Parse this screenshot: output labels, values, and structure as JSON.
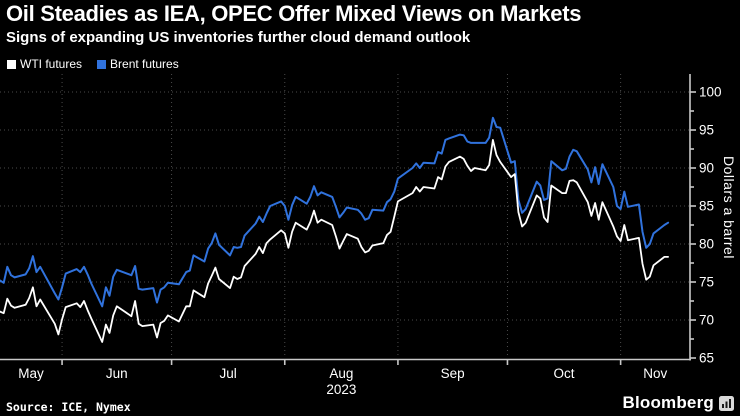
{
  "chart_data": {
    "type": "line",
    "title": "Oil Steadies as IEA, OPEC Offer Mixed Views on Markets",
    "subtitle": "Signs of expanding US inventories further cloud demand outlook",
    "ylabel": "Dollars a barrel",
    "ylim": [
      65,
      100
    ],
    "grid": true,
    "legend_position": "top-left",
    "background_color": "#000000",
    "grid_color": "#4a4a4a",
    "axis_color": "#c8c8c8",
    "text_color": "#ffffff",
    "x_unit": "trading days, offset 1 = 15 May 2023",
    "x_domain": [
      1,
      190
    ],
    "y_ticks_major": [
      65,
      70,
      75,
      80,
      85,
      90,
      95,
      100
    ],
    "y_ticks_minor": [
      67.5,
      72.5,
      77.5,
      82.5,
      87.5,
      92.5,
      97.5
    ],
    "gridline_values": [
      70,
      75,
      80,
      85,
      90,
      95,
      100
    ],
    "month_boundaries": [
      18,
      48,
      79,
      110,
      140,
      171
    ],
    "month_labels": [
      {
        "label": "May",
        "d": 9.5
      },
      {
        "label": "Jun",
        "d": 33
      },
      {
        "label": "Jul",
        "d": 63.5
      },
      {
        "label": "Aug",
        "d": 94.5
      },
      {
        "label": "Sep",
        "d": 125
      },
      {
        "label": "Oct",
        "d": 155.5
      },
      {
        "label": "Nov",
        "d": 180.5
      }
    ],
    "year_label": {
      "text": "2023",
      "d": 94.5
    },
    "x_offsets": [
      1,
      2,
      3,
      4,
      5,
      8,
      9,
      10,
      11,
      12,
      16,
      17,
      18,
      19,
      22,
      23,
      24,
      25,
      26,
      29,
      30,
      31,
      32,
      33,
      37,
      38,
      39,
      40,
      43,
      44,
      45,
      46,
      47,
      50,
      52,
      53,
      54,
      57,
      58,
      59,
      60,
      61,
      64,
      65,
      66,
      67,
      68,
      71,
      72,
      73,
      74,
      75,
      78,
      79,
      80,
      81,
      82,
      85,
      86,
      87,
      88,
      89,
      92,
      93,
      94,
      95,
      96,
      99,
      100,
      101,
      102,
      103,
      106,
      107,
      108,
      109,
      110,
      114,
      115,
      116,
      117,
      120,
      121,
      122,
      123,
      124,
      127,
      128,
      129,
      130,
      131,
      134,
      135,
      136,
      137,
      138,
      141,
      142,
      143,
      144,
      145,
      148,
      149,
      150,
      151,
      152,
      155,
      156,
      157,
      158,
      159,
      162,
      163,
      164,
      165,
      166,
      169,
      170,
      171,
      172,
      173,
      176,
      177,
      178,
      179,
      180,
      183,
      184
    ],
    "series": [
      {
        "name": "WTI futures",
        "color": "#ffffff",
        "width": 1.8,
        "values": [
          71.1,
          70.9,
          72.8,
          71.9,
          71.6,
          72.0,
          72.9,
          74.3,
          71.8,
          72.7,
          69.5,
          68.1,
          70.1,
          71.7,
          72.2,
          71.7,
          72.5,
          71.3,
          70.2,
          67.1,
          69.4,
          68.3,
          70.6,
          71.8,
          70.5,
          72.5,
          69.5,
          69.2,
          69.4,
          67.7,
          69.6,
          69.9,
          70.6,
          69.8,
          71.8,
          71.8,
          73.9,
          73.0,
          74.8,
          75.8,
          76.9,
          75.4,
          74.2,
          75.7,
          75.4,
          75.6,
          77.1,
          78.7,
          79.6,
          78.8,
          80.1,
          80.6,
          81.8,
          81.4,
          79.5,
          81.6,
          82.8,
          81.9,
          82.9,
          84.4,
          82.8,
          83.2,
          82.5,
          81.0,
          79.4,
          80.4,
          81.3,
          80.7,
          79.6,
          78.9,
          79.1,
          79.8,
          80.1,
          81.2,
          81.6,
          83.6,
          85.6,
          86.7,
          87.5,
          86.9,
          87.5,
          87.3,
          88.8,
          88.5,
          90.2,
          90.8,
          91.5,
          91.2,
          90.3,
          89.6,
          90.0,
          89.7,
          90.4,
          93.7,
          91.7,
          90.8,
          88.8,
          89.2,
          84.2,
          82.3,
          82.8,
          86.4,
          86.0,
          83.5,
          82.9,
          87.7,
          86.7,
          86.7,
          88.3,
          88.4,
          88.1,
          85.5,
          83.7,
          85.4,
          83.2,
          85.5,
          82.3,
          81.0,
          80.4,
          82.5,
          80.5,
          80.8,
          77.4,
          75.3,
          75.7,
          77.2,
          78.3,
          78.3
        ]
      },
      {
        "name": "Brent futures",
        "color": "#3072dd",
        "width": 2,
        "values": [
          75.2,
          74.9,
          77.0,
          75.9,
          75.6,
          76.0,
          76.8,
          78.4,
          76.3,
          77.0,
          73.5,
          72.7,
          74.3,
          76.1,
          76.7,
          76.3,
          77.0,
          76.0,
          74.8,
          71.8,
          74.3,
          73.2,
          75.7,
          76.6,
          75.9,
          77.1,
          74.1,
          74.0,
          74.2,
          72.3,
          74.0,
          74.3,
          74.9,
          74.7,
          76.3,
          76.5,
          78.5,
          77.7,
          79.4,
          80.1,
          81.4,
          79.9,
          78.5,
          79.6,
          79.5,
          79.6,
          81.1,
          82.7,
          83.6,
          82.9,
          84.0,
          85.0,
          85.6,
          85.0,
          83.2,
          85.1,
          86.2,
          85.3,
          86.2,
          87.6,
          86.4,
          86.8,
          86.2,
          84.9,
          83.5,
          84.1,
          84.8,
          84.5,
          84.0,
          83.2,
          83.4,
          84.5,
          84.4,
          85.5,
          85.9,
          86.9,
          88.6,
          90.0,
          90.6,
          90.0,
          90.7,
          90.6,
          92.1,
          91.9,
          93.7,
          93.9,
          94.4,
          94.3,
          93.5,
          93.3,
          93.3,
          93.3,
          94.0,
          96.6,
          95.4,
          95.3,
          90.7,
          90.9,
          85.8,
          84.1,
          84.6,
          88.2,
          87.7,
          85.8,
          86.0,
          90.9,
          89.7,
          89.9,
          91.5,
          92.4,
          92.2,
          89.8,
          88.1,
          90.1,
          87.9,
          90.5,
          87.5,
          85.0,
          84.6,
          86.9,
          84.9,
          85.2,
          81.6,
          79.5,
          80.0,
          81.4,
          82.5,
          82.8
        ]
      }
    ]
  },
  "footer": {
    "source": "Source: ICE, Nymex",
    "brand": "Bloomberg"
  }
}
